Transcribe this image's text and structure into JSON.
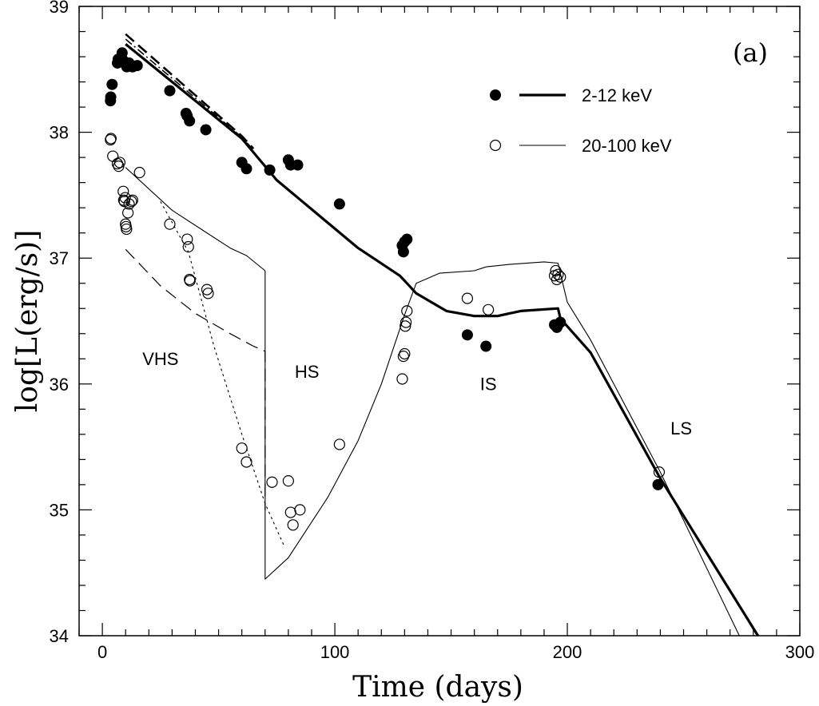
{
  "chart_data": {
    "type": "scatter",
    "panel_label": "(a)",
    "xlabel": "Time (days)",
    "ylabel": "log[L(erg/s)]",
    "xlim": [
      -10,
      300
    ],
    "ylim": [
      34,
      39
    ],
    "xticks": [
      0,
      100,
      200,
      300
    ],
    "yticks": [
      34,
      35,
      36,
      37,
      38,
      39
    ],
    "x_minor_step": 10,
    "y_minor_step": 0.2,
    "grid": false,
    "legend_position": "top-right",
    "legend": [
      {
        "marker": "filled-circle",
        "line": "thick",
        "label": "2-12 keV"
      },
      {
        "marker": "open-circle",
        "line": "thin",
        "label": "20-100 keV"
      }
    ],
    "regions": [
      {
        "label": "VHS",
        "x": 25,
        "y": 36.15
      },
      {
        "label": "HS",
        "x": 88,
        "y": 36.05
      },
      {
        "label": "IS",
        "x": 166,
        "y": 35.95
      },
      {
        "label": "LS",
        "x": 249,
        "y": 35.6
      }
    ],
    "series": [
      {
        "name": "2-12 keV",
        "kind": "points",
        "marker": "filled",
        "points": [
          [
            3.5,
            38.25
          ],
          [
            3.6,
            38.28
          ],
          [
            4.2,
            38.38
          ],
          [
            6.5,
            38.55
          ],
          [
            6.8,
            38.58
          ],
          [
            7.5,
            38.57
          ],
          [
            8.5,
            38.63
          ],
          [
            9,
            38.57
          ],
          [
            10,
            38.55
          ],
          [
            10.5,
            38.52
          ],
          [
            11.5,
            38.55
          ],
          [
            13,
            38.52
          ],
          [
            15,
            38.53
          ],
          [
            29,
            38.33
          ],
          [
            36,
            38.15
          ],
          [
            36.5,
            38.13
          ],
          [
            37.5,
            38.09
          ],
          [
            44.5,
            38.02
          ],
          [
            60,
            37.76
          ],
          [
            62,
            37.71
          ],
          [
            72,
            37.7
          ],
          [
            80,
            37.78
          ],
          [
            81,
            37.74
          ],
          [
            84,
            37.74
          ],
          [
            102,
            37.43
          ],
          [
            129,
            37.1
          ],
          [
            129.5,
            37.05
          ],
          [
            130,
            37.13
          ],
          [
            131,
            37.15
          ],
          [
            157,
            36.39
          ],
          [
            165,
            36.3
          ],
          [
            194.5,
            36.47
          ],
          [
            195.5,
            36.45
          ],
          [
            196,
            36.47
          ],
          [
            197,
            36.49
          ],
          [
            239,
            35.2
          ]
        ]
      },
      {
        "name": "20-100 keV",
        "kind": "points",
        "marker": "open",
        "points": [
          [
            3.5,
            37.94
          ],
          [
            3.7,
            37.95
          ],
          [
            4.5,
            37.81
          ],
          [
            6.5,
            37.75
          ],
          [
            7,
            37.73
          ],
          [
            7.5,
            37.76
          ],
          [
            9,
            37.53
          ],
          [
            9.2,
            37.46
          ],
          [
            9.5,
            37.45
          ],
          [
            9.8,
            37.48
          ],
          [
            10,
            37.27
          ],
          [
            10.2,
            37.25
          ],
          [
            10.4,
            37.23
          ],
          [
            11,
            37.36
          ],
          [
            11.5,
            37.43
          ],
          [
            12.5,
            37.45
          ],
          [
            13,
            37.46
          ],
          [
            16,
            37.68
          ],
          [
            29,
            37.27
          ],
          [
            36.5,
            37.15
          ],
          [
            37,
            37.09
          ],
          [
            37.5,
            36.83
          ],
          [
            37.7,
            36.82
          ],
          [
            45,
            36.75
          ],
          [
            45.5,
            36.72
          ],
          [
            60,
            35.49
          ],
          [
            62,
            35.38
          ],
          [
            73,
            35.22
          ],
          [
            80,
            35.23
          ],
          [
            81,
            34.98
          ],
          [
            82,
            34.88
          ],
          [
            85,
            35.0
          ],
          [
            102,
            35.52
          ],
          [
            129,
            36.04
          ],
          [
            129.5,
            36.22
          ],
          [
            130,
            36.24
          ],
          [
            130.3,
            36.46
          ],
          [
            130.6,
            36.49
          ],
          [
            131,
            36.58
          ],
          [
            157,
            36.68
          ],
          [
            166,
            36.59
          ],
          [
            194.5,
            36.86
          ],
          [
            195,
            36.9
          ],
          [
            195.5,
            36.83
          ],
          [
            196,
            36.87
          ],
          [
            197,
            36.85
          ],
          [
            239.5,
            35.3
          ]
        ]
      },
      {
        "name": "",
        "kind": "line",
        "style": "thick",
        "points": [
          [
            10,
            38.7
          ],
          [
            60,
            37.95
          ],
          [
            75,
            37.62
          ],
          [
            110,
            37.08
          ],
          [
            128,
            36.86
          ],
          [
            131,
            36.8
          ],
          [
            135,
            36.72
          ],
          [
            148,
            36.58
          ],
          [
            160,
            36.54
          ],
          [
            170,
            36.54
          ],
          [
            180,
            36.58
          ],
          [
            196,
            36.6
          ],
          [
            197,
            36.52
          ],
          [
            210,
            36.25
          ],
          [
            240,
            35.25
          ],
          [
            282,
            34
          ]
        ]
      },
      {
        "name": "",
        "kind": "line",
        "style": "dashed",
        "points": [
          [
            10,
            38.78
          ],
          [
            60,
            37.97
          ],
          [
            65,
            37.87
          ]
        ]
      },
      {
        "name": "",
        "kind": "line",
        "style": "dash-dot",
        "points": [
          [
            10,
            38.74
          ],
          [
            60,
            37.96
          ],
          [
            65,
            37.86
          ]
        ]
      },
      {
        "name": "",
        "kind": "line",
        "style": "thin",
        "points": [
          [
            10,
            37.72
          ],
          [
            30,
            37.38
          ],
          [
            55,
            37.08
          ],
          [
            62,
            37.02
          ],
          [
            70,
            36.9
          ],
          [
            70,
            34.45
          ],
          [
            80,
            34.62
          ],
          [
            97,
            35.1
          ],
          [
            110,
            35.55
          ],
          [
            120,
            36.0
          ],
          [
            130,
            36.55
          ],
          [
            135,
            36.8
          ],
          [
            145,
            36.88
          ],
          [
            160,
            36.9
          ],
          [
            165,
            36.93
          ],
          [
            175,
            36.95
          ],
          [
            190,
            36.97
          ],
          [
            196,
            36.96
          ],
          [
            197,
            36.88
          ],
          [
            200,
            36.65
          ],
          [
            210,
            36.35
          ],
          [
            240,
            35.3
          ],
          [
            274,
            34
          ]
        ]
      },
      {
        "name": "",
        "kind": "line",
        "style": "long-dashed",
        "points": [
          [
            10,
            37.07
          ],
          [
            25,
            36.78
          ],
          [
            40,
            36.56
          ],
          [
            55,
            36.4
          ],
          [
            65,
            36.3
          ],
          [
            70,
            36.26
          ],
          [
            70,
            35.0
          ]
        ]
      },
      {
        "name": "",
        "kind": "line",
        "style": "dotted",
        "points": [
          [
            25,
            37.45
          ],
          [
            37,
            37.05
          ],
          [
            48,
            36.3
          ],
          [
            60,
            35.6
          ],
          [
            70,
            35.05
          ],
          [
            78,
            34.72
          ]
        ]
      }
    ]
  }
}
